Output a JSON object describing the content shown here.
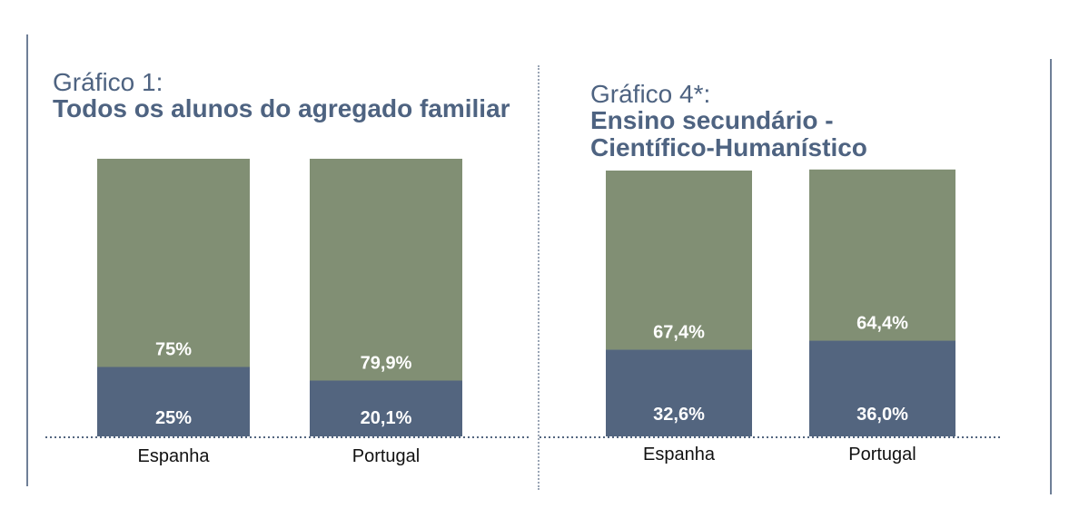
{
  "colors": {
    "green": "#818f74",
    "blue": "#53657f",
    "title": "#4e6381",
    "axis": "#53657f",
    "label_on_bar": "#ffffff",
    "category": "#111111"
  },
  "chart_data": [
    {
      "type": "bar",
      "stacked": true,
      "title_line1": "Gráfico 1:",
      "title_line2": "Todos os alunos do agregado familiar",
      "categories": [
        "Espanha",
        "Portugal"
      ],
      "series": [
        {
          "values": [
            25,
            20.1
          ],
          "labels": [
            "25%",
            "20,1%"
          ],
          "color": "#53657f"
        },
        {
          "values": [
            75,
            79.9
          ],
          "labels": [
            "75%",
            "79,9%"
          ],
          "color": "#818f74"
        }
      ],
      "ylim": [
        0,
        100
      ]
    },
    {
      "type": "bar",
      "stacked": true,
      "title_line1": "Gráfico 4*:",
      "title_line2": "Ensino secundário -\nCientífico-Humanístico",
      "categories": [
        "Espanha",
        "Portugal"
      ],
      "series": [
        {
          "values": [
            32.6,
            36.0
          ],
          "labels": [
            "32,6%",
            "36,0%"
          ],
          "color": "#53657f"
        },
        {
          "values": [
            67.4,
            64.4
          ],
          "labels": [
            "67,4%",
            "64,4%"
          ],
          "color": "#818f74"
        }
      ],
      "ylim": [
        0,
        100
      ]
    }
  ]
}
